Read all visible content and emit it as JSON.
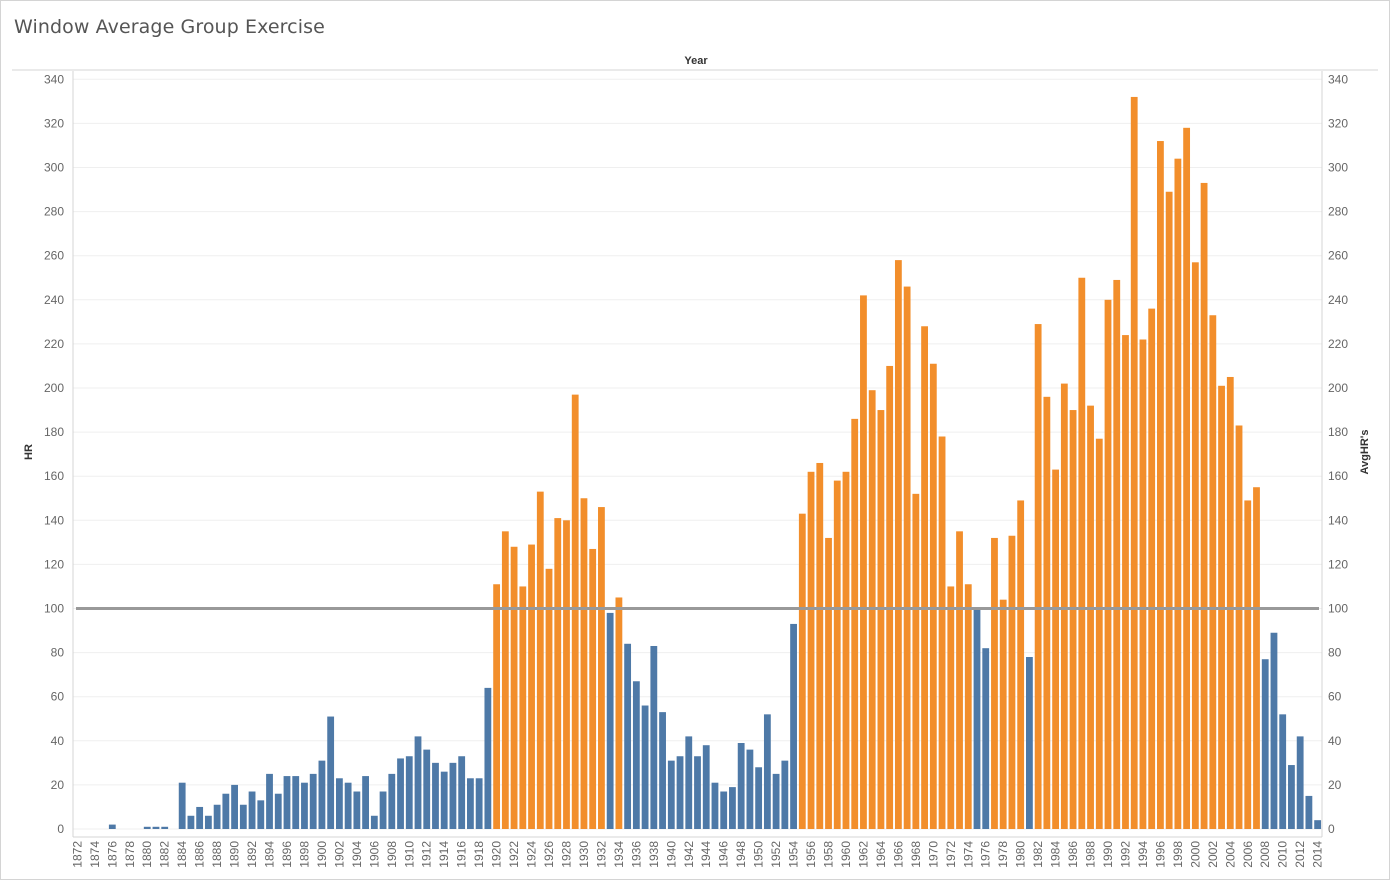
{
  "page": {
    "title": "Window Average Group Exercise"
  },
  "colors": {
    "below": "#4e79a7",
    "above": "#f28e2b",
    "reference_line": "#999999",
    "grid": "#efefef"
  },
  "chart_data": {
    "type": "bar",
    "title": "Window Average Group Exercise",
    "column_header": "Year",
    "ylabel": "HR",
    "ylabel_right": "AvgHR's",
    "ylim": [
      0,
      345
    ],
    "yticks": [
      0,
      20,
      40,
      60,
      80,
      100,
      120,
      140,
      160,
      180,
      200,
      220,
      240,
      260,
      280,
      300,
      320,
      340
    ],
    "reference_line": 100,
    "grid": true,
    "x_tick_step": 2,
    "categories": [
      1872,
      1873,
      1874,
      1875,
      1876,
      1877,
      1878,
      1879,
      1880,
      1881,
      1882,
      1883,
      1884,
      1885,
      1886,
      1887,
      1888,
      1889,
      1890,
      1891,
      1892,
      1893,
      1894,
      1895,
      1896,
      1897,
      1898,
      1899,
      1900,
      1901,
      1902,
      1903,
      1904,
      1905,
      1906,
      1907,
      1908,
      1909,
      1910,
      1911,
      1912,
      1913,
      1914,
      1915,
      1916,
      1917,
      1918,
      1919,
      1920,
      1921,
      1922,
      1923,
      1924,
      1925,
      1926,
      1927,
      1928,
      1929,
      1930,
      1931,
      1932,
      1933,
      1934,
      1935,
      1936,
      1937,
      1938,
      1939,
      1940,
      1941,
      1942,
      1943,
      1944,
      1945,
      1946,
      1947,
      1948,
      1949,
      1950,
      1951,
      1952,
      1953,
      1954,
      1955,
      1956,
      1957,
      1958,
      1959,
      1960,
      1961,
      1962,
      1963,
      1964,
      1965,
      1966,
      1967,
      1968,
      1969,
      1970,
      1971,
      1972,
      1973,
      1974,
      1975,
      1976,
      1977,
      1978,
      1979,
      1980,
      1981,
      1982,
      1983,
      1984,
      1985,
      1986,
      1987,
      1988,
      1989,
      1990,
      1991,
      1992,
      1993,
      1994,
      1995,
      1996,
      1997,
      1998,
      1999,
      2000,
      2001,
      2002,
      2003,
      2004,
      2005,
      2006,
      2007,
      2008,
      2009,
      2010,
      2011,
      2012,
      2013,
      2014
    ],
    "values": [
      0,
      0,
      0,
      0,
      2,
      0,
      0,
      0,
      1,
      1,
      1,
      0,
      21,
      6,
      10,
      6,
      11,
      16,
      20,
      11,
      17,
      13,
      25,
      16,
      24,
      24,
      21,
      25,
      31,
      51,
      23,
      21,
      17,
      24,
      6,
      17,
      25,
      32,
      33,
      42,
      36,
      30,
      26,
      30,
      33,
      23,
      23,
      64,
      111,
      135,
      128,
      110,
      129,
      153,
      118,
      141,
      140,
      197,
      150,
      127,
      146,
      98,
      105,
      84,
      67,
      56,
      83,
      53,
      31,
      33,
      42,
      33,
      38,
      21,
      17,
      19,
      39,
      36,
      28,
      52,
      25,
      31,
      93,
      143,
      162,
      166,
      132,
      158,
      162,
      186,
      242,
      199,
      190,
      210,
      258,
      246,
      152,
      228,
      211,
      178,
      110,
      135,
      111,
      100,
      82,
      132,
      104,
      133,
      149,
      78,
      229,
      196,
      163,
      202,
      190,
      250,
      192,
      177,
      240,
      249,
      224,
      332,
      222,
      236,
      312,
      289,
      304,
      318,
      257,
      293,
      233,
      201,
      205,
      183,
      149,
      155,
      77,
      89,
      52,
      29,
      42,
      15,
      4
    ]
  }
}
